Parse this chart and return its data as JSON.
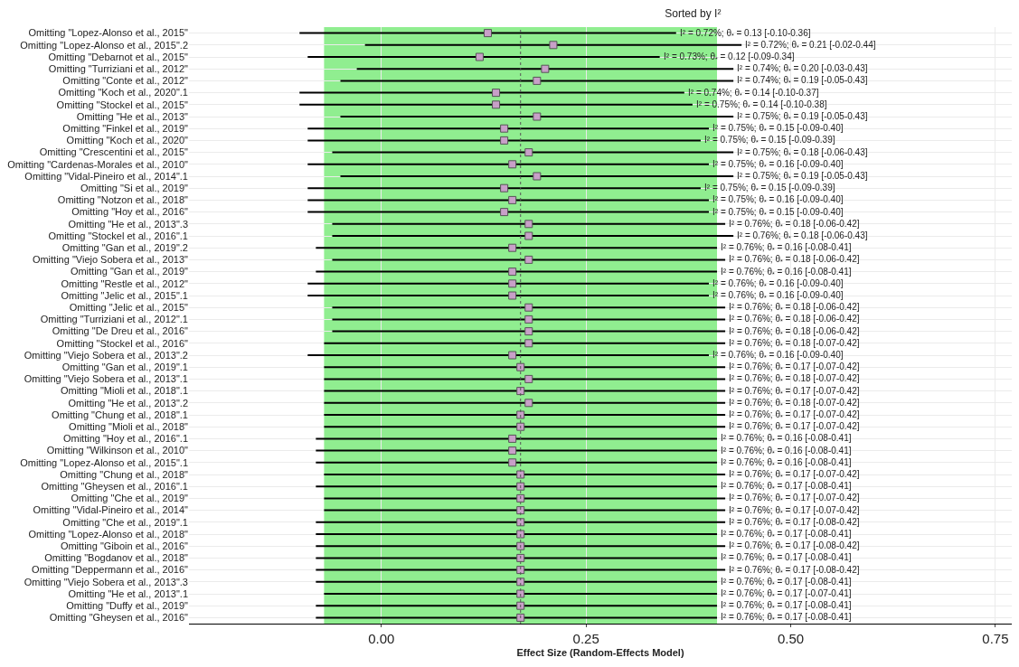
{
  "chart_data": {
    "type": "scatter",
    "orientation": "horizontal",
    "title": "Sorted by I²",
    "xlabel": "Effect Size (Random-Effects Model)",
    "categories": [
      "Omitting \"Lopez-Alonso et al., 2015\"",
      "Omitting \"Lopez-Alonso et al., 2015\".2",
      "Omitting \"Debarnot et al., 2015\"",
      "Omitting \"Turriziani et al., 2012\"",
      "Omitting \"Conte et al., 2012\"",
      "Omitting \"Koch et al., 2020\".1",
      "Omitting \"Stockel et al., 2015\"",
      "Omitting \"He et al., 2013\"",
      "Omitting \"Finkel et al., 2019\"",
      "Omitting \"Koch et al., 2020\"",
      "Omitting \"Crescentini et al., 2015\"",
      "Omitting \"Cardenas-Morales et al., 2010\"",
      "Omitting \"Vidal-Pineiro et al., 2014\".1",
      "Omitting \"Si et al., 2019\"",
      "Omitting \"Notzon et al., 2018\"",
      "Omitting \"Hoy et al., 2016\"",
      "Omitting \"He et al., 2013\".3",
      "Omitting \"Stockel et al., 2016\".1",
      "Omitting \"Gan et al., 2019\".2",
      "Omitting \"Viejo Sobera et al., 2013\"",
      "Omitting \"Gan et al., 2019\"",
      "Omitting \"Restle et al., 2012\"",
      "Omitting \"Jelic et al., 2015\".1",
      "Omitting \"Jelic et al., 2015\"",
      "Omitting \"Turriziani et al., 2012\".1",
      "Omitting \"De Dreu et al., 2016\"",
      "Omitting \"Stockel et al., 2016\"",
      "Omitting \"Viejo Sobera et al., 2013\".2",
      "Omitting \"Gan et al., 2019\".1",
      "Omitting \"Viejo Sobera et al., 2013\".1",
      "Omitting \"Mioli et al., 2018\".1",
      "Omitting \"He et al., 2013\".2",
      "Omitting \"Chung et al., 2018\".1",
      "Omitting \"Mioli et al., 2018\"",
      "Omitting \"Hoy et al., 2016\".1",
      "Omitting \"Wilkinson et al., 2010\"",
      "Omitting \"Lopez-Alonso et al., 2015\".1",
      "Omitting \"Chung et al., 2018\"",
      "Omitting \"Gheysen et al., 2016\".1",
      "Omitting \"Che et al., 2019\"",
      "Omitting \"Vidal-Pineiro et al., 2014\"",
      "Omitting \"Che et al., 2019\".1",
      "Omitting \"Lopez-Alonso et al., 2018\"",
      "Omitting \"Giboin et al., 2016\"",
      "Omitting \"Bogdanov et al., 2018\"",
      "Omitting \"Deppermann et al., 2016\"",
      "Omitting \"Viejo Sobera et al., 2013\".3",
      "Omitting \"He et al., 2013\".1",
      "Omitting \"Duffy et al., 2019\"",
      "Omitting \"Gheysen et al., 2016\""
    ],
    "values": [
      0.13,
      0.21,
      0.12,
      0.2,
      0.19,
      0.14,
      0.14,
      0.19,
      0.15,
      0.15,
      0.18,
      0.16,
      0.19,
      0.15,
      0.16,
      0.15,
      0.18,
      0.18,
      0.16,
      0.18,
      0.16,
      0.16,
      0.16,
      0.18,
      0.18,
      0.18,
      0.18,
      0.16,
      0.17,
      0.18,
      0.17,
      0.18,
      0.17,
      0.17,
      0.16,
      0.16,
      0.16,
      0.17,
      0.17,
      0.17,
      0.17,
      0.17,
      0.17,
      0.17,
      0.17,
      0.17,
      0.17,
      0.17,
      0.17,
      0.17
    ],
    "errors": [
      [
        -0.1,
        0.36
      ],
      [
        -0.02,
        0.44
      ],
      [
        -0.09,
        0.34
      ],
      [
        -0.03,
        0.43
      ],
      [
        -0.05,
        0.43
      ],
      [
        -0.1,
        0.37
      ],
      [
        -0.1,
        0.38
      ],
      [
        -0.05,
        0.43
      ],
      [
        -0.09,
        0.4
      ],
      [
        -0.09,
        0.39
      ],
      [
        -0.06,
        0.43
      ],
      [
        -0.09,
        0.4
      ],
      [
        -0.05,
        0.43
      ],
      [
        -0.09,
        0.39
      ],
      [
        -0.09,
        0.4
      ],
      [
        -0.09,
        0.4
      ],
      [
        -0.06,
        0.42
      ],
      [
        -0.06,
        0.43
      ],
      [
        -0.08,
        0.41
      ],
      [
        -0.06,
        0.42
      ],
      [
        -0.08,
        0.41
      ],
      [
        -0.09,
        0.4
      ],
      [
        -0.09,
        0.4
      ],
      [
        -0.06,
        0.42
      ],
      [
        -0.06,
        0.42
      ],
      [
        -0.06,
        0.42
      ],
      [
        -0.07,
        0.42
      ],
      [
        -0.09,
        0.4
      ],
      [
        -0.07,
        0.42
      ],
      [
        -0.07,
        0.42
      ],
      [
        -0.07,
        0.42
      ],
      [
        -0.07,
        0.42
      ],
      [
        -0.07,
        0.42
      ],
      [
        -0.07,
        0.42
      ],
      [
        -0.08,
        0.41
      ],
      [
        -0.08,
        0.41
      ],
      [
        -0.08,
        0.41
      ],
      [
        -0.07,
        0.42
      ],
      [
        -0.08,
        0.41
      ],
      [
        -0.07,
        0.42
      ],
      [
        -0.07,
        0.42
      ],
      [
        -0.08,
        0.42
      ],
      [
        -0.08,
        0.41
      ],
      [
        -0.08,
        0.42
      ],
      [
        -0.08,
        0.41
      ],
      [
        -0.08,
        0.42
      ],
      [
        -0.08,
        0.41
      ],
      [
        -0.07,
        0.41
      ],
      [
        -0.08,
        0.41
      ],
      [
        -0.08,
        0.41
      ]
    ],
    "annotations": [
      "I² = 0.72%; θ$_{*}$ = 0.13 [-0.10-0.36]",
      "I² = 0.72%; θ$_{*}$ = 0.21 [-0.02-0.44]",
      "I² = 0.73%; θ$_{*}$ = 0.12 [-0.09-0.34]",
      "I² = 0.74%; θ$_{*}$ = 0.20 [-0.03-0.43]",
      "I² = 0.74%; θ$_{*}$ = 0.19 [-0.05-0.43]",
      "I² = 0.74%; θ$_{*}$ = 0.14 [-0.10-0.37]",
      "I² = 0.75%; θ$_{*}$ = 0.14 [-0.10-0.38]",
      "I² = 0.75%; θ$_{*}$ = 0.19 [-0.05-0.43]",
      "I² = 0.75%; θ$_{*}$ = 0.15 [-0.09-0.40]",
      "I² = 0.75%; θ$_{*}$ = 0.15 [-0.09-0.39]",
      "I² = 0.75%; θ$_{*}$ = 0.18 [-0.06-0.43]",
      "I² = 0.75%; θ$_{*}$ = 0.16 [-0.09-0.40]",
      "I² = 0.75%; θ$_{*}$ = 0.19 [-0.05-0.43]",
      "I² = 0.75%; θ$_{*}$ = 0.15 [-0.09-0.39]",
      "I² = 0.75%; θ$_{*}$ = 0.16 [-0.09-0.40]",
      "I² = 0.75%; θ$_{*}$ = 0.15 [-0.09-0.40]",
      "I² = 0.76%; θ$_{*}$ = 0.18 [-0.06-0.42]",
      "I² = 0.76%; θ$_{*}$ = 0.18 [-0.06-0.43]",
      "I² = 0.76%; θ$_{*}$ = 0.16 [-0.08-0.41]",
      "I² = 0.76%; θ$_{*}$ = 0.18 [-0.06-0.42]",
      "I² = 0.76%; θ$_{*}$ = 0.16 [-0.08-0.41]",
      "I² = 0.76%; θ$_{*}$ = 0.16 [-0.09-0.40]",
      "I² = 0.76%; θ$_{*}$ = 0.16 [-0.09-0.40]",
      "I² = 0.76%; θ$_{*}$ = 0.18 [-0.06-0.42]",
      "I² = 0.76%; θ$_{*}$ = 0.18 [-0.06-0.42]",
      "I² = 0.76%; θ$_{*}$ = 0.18 [-0.06-0.42]",
      "I² = 0.76%; θ$_{*}$ = 0.18 [-0.07-0.42]",
      "I² = 0.76%; θ$_{*}$ = 0.16 [-0.09-0.40]",
      "I² = 0.76%; θ$_{*}$ = 0.17 [-0.07-0.42]",
      "I² = 0.76%; θ$_{*}$ = 0.18 [-0.07-0.42]",
      "I² = 0.76%; θ$_{*}$ = 0.17 [-0.07-0.42]",
      "I² = 0.76%; θ$_{*}$ = 0.18 [-0.07-0.42]",
      "I² = 0.76%; θ$_{*}$ = 0.17 [-0.07-0.42]",
      "I² = 0.76%; θ$_{*}$ = 0.17 [-0.07-0.42]",
      "I² = 0.76%; θ$_{*}$ = 0.16 [-0.08-0.41]",
      "I² = 0.76%; θ$_{*}$ = 0.16 [-0.08-0.41]",
      "I² = 0.76%; θ$_{*}$ = 0.16 [-0.08-0.41]",
      "I² = 0.76%; θ$_{*}$ = 0.17 [-0.07-0.42]",
      "I² = 0.76%; θ$_{*}$ = 0.17 [-0.08-0.41]",
      "I² = 0.76%; θ$_{*}$ = 0.17 [-0.07-0.42]",
      "I² = 0.76%; θ$_{*}$ = 0.17 [-0.07-0.42]",
      "I² = 0.76%; θ$_{*}$ = 0.17 [-0.08-0.42]",
      "I² = 0.76%; θ$_{*}$ = 0.17 [-0.08-0.41]",
      "I² = 0.76%; θ$_{*}$ = 0.17 [-0.08-0.42]",
      "I² = 0.76%; θ$_{*}$ = 0.17 [-0.08-0.41]",
      "I² = 0.76%; θ$_{*}$ = 0.17 [-0.08-0.42]",
      "I² = 0.76%; θ$_{*}$ = 0.17 [-0.08-0.41]",
      "I² = 0.76%; θ$_{*}$ = 0.17 [-0.07-0.41]",
      "I² = 0.76%; θ$_{*}$ = 0.17 [-0.08-0.41]",
      "I² = 0.76%; θ$_{*}$ = 0.17 [-0.08-0.41]"
    ],
    "color": "#c8a0c8",
    "marker": "square",
    "grid": true,
    "xlim": [
      -0.235,
      0.77
    ],
    "xticks": [
      {
        "value": 0,
        "label": "0.00"
      },
      {
        "value": 0.25,
        "label": "0.25"
      },
      {
        "value": 0.5,
        "label": "0.50"
      },
      {
        "value": 0.75,
        "label": "0.75"
      }
    ],
    "bands": [
      {
        "axis": "x",
        "from": -0.07,
        "to": 0.41,
        "color": "#90ee90"
      }
    ],
    "ref_lines": [
      {
        "axis": "x",
        "value": 0.17,
        "color": "#555555",
        "line_style": "dotted"
      }
    ]
  }
}
